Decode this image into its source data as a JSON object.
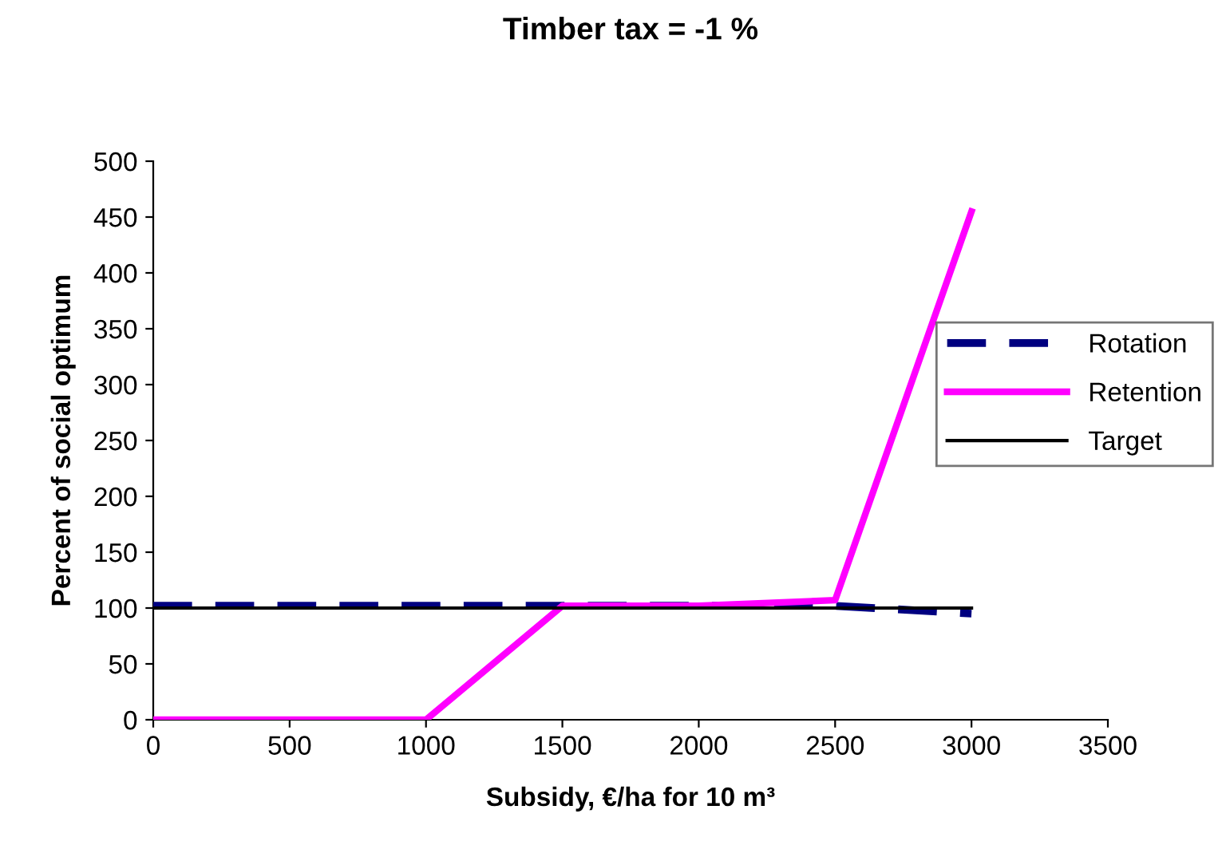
{
  "chart_data": {
    "type": "line",
    "title": "Timber tax = -1 %",
    "xlabel": "Subsidy, €/ha for 10 m³",
    "ylabel": "Percent of social optimum",
    "x": [
      0,
      500,
      1000,
      1500,
      2000,
      2500,
      3000
    ],
    "series": [
      {
        "name": "Rotation",
        "color": "#000080",
        "values": [
          102,
          102,
          102,
          102,
          102,
          102,
          95
        ],
        "line_style": "dashed"
      },
      {
        "name": "Retention",
        "color": "#ff00ff",
        "values": [
          0,
          0,
          0,
          102,
          102,
          107,
          455
        ],
        "line_style": "solid"
      },
      {
        "name": "Target",
        "color": "#000000",
        "values": [
          100,
          100,
          100,
          100,
          100,
          100,
          100
        ],
        "line_style": "solid"
      }
    ],
    "xlim": [
      0,
      3500
    ],
    "xticks": [
      0,
      500,
      1000,
      1500,
      2000,
      2500,
      3000,
      3500
    ],
    "ylim": [
      0,
      500
    ],
    "yticks": [
      0,
      50,
      100,
      150,
      200,
      250,
      300,
      350,
      400,
      450,
      500
    ],
    "grid": false,
    "legend": "right",
    "marker": "none"
  }
}
